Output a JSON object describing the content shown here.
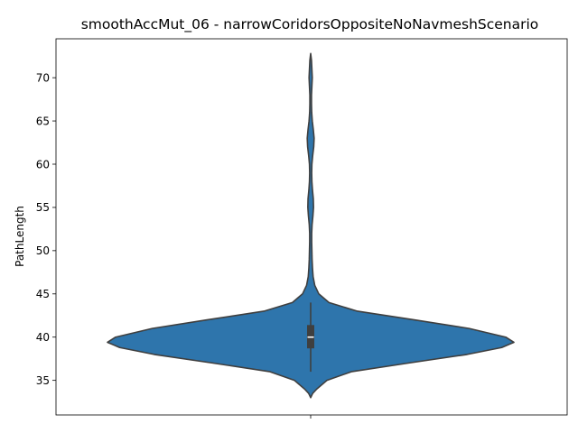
{
  "chart_data": {
    "type": "violin",
    "title": "smoothAccMut_06 - narrowCoridorsOppositeNoNavmeshScenario",
    "xlabel": "",
    "ylabel": "PathLength",
    "ylim": [
      31.0,
      74.5
    ],
    "yticks": [
      35,
      40,
      45,
      50,
      55,
      60,
      65,
      70
    ],
    "grid": false,
    "series": [
      {
        "color": "#2e75ac",
        "density_profile": [
          [
            33.0,
            0.0
          ],
          [
            33.5,
            0.01
          ],
          [
            34.0,
            0.03
          ],
          [
            35.0,
            0.08
          ],
          [
            36.0,
            0.2
          ],
          [
            37.0,
            0.48
          ],
          [
            38.0,
            0.77
          ],
          [
            38.8,
            0.94
          ],
          [
            39.4,
            1.0
          ],
          [
            40.0,
            0.96
          ],
          [
            41.0,
            0.78
          ],
          [
            42.0,
            0.51
          ],
          [
            43.0,
            0.23
          ],
          [
            44.0,
            0.09
          ],
          [
            45.0,
            0.04
          ],
          [
            46.0,
            0.02
          ],
          [
            47.0,
            0.012
          ],
          [
            48.0,
            0.009
          ],
          [
            49.0,
            0.007
          ],
          [
            50.0,
            0.006
          ],
          [
            51.0,
            0.005
          ],
          [
            52.0,
            0.005
          ],
          [
            53.0,
            0.007
          ],
          [
            54.0,
            0.011
          ],
          [
            55.0,
            0.014
          ],
          [
            56.0,
            0.013
          ],
          [
            57.0,
            0.009
          ],
          [
            58.0,
            0.006
          ],
          [
            59.0,
            0.005
          ],
          [
            60.0,
            0.006
          ],
          [
            61.0,
            0.01
          ],
          [
            62.0,
            0.015
          ],
          [
            63.0,
            0.017
          ],
          [
            64.0,
            0.013
          ],
          [
            65.0,
            0.008
          ],
          [
            66.0,
            0.005
          ],
          [
            67.0,
            0.004
          ],
          [
            68.0,
            0.004
          ],
          [
            69.0,
            0.006
          ],
          [
            70.0,
            0.008
          ],
          [
            71.0,
            0.006
          ],
          [
            72.0,
            0.004
          ],
          [
            72.8,
            0.0
          ]
        ],
        "whisker": [
          36.0,
          44.0
        ],
        "box": [
          38.7,
          41.4
        ],
        "median": 40.0
      }
    ]
  }
}
